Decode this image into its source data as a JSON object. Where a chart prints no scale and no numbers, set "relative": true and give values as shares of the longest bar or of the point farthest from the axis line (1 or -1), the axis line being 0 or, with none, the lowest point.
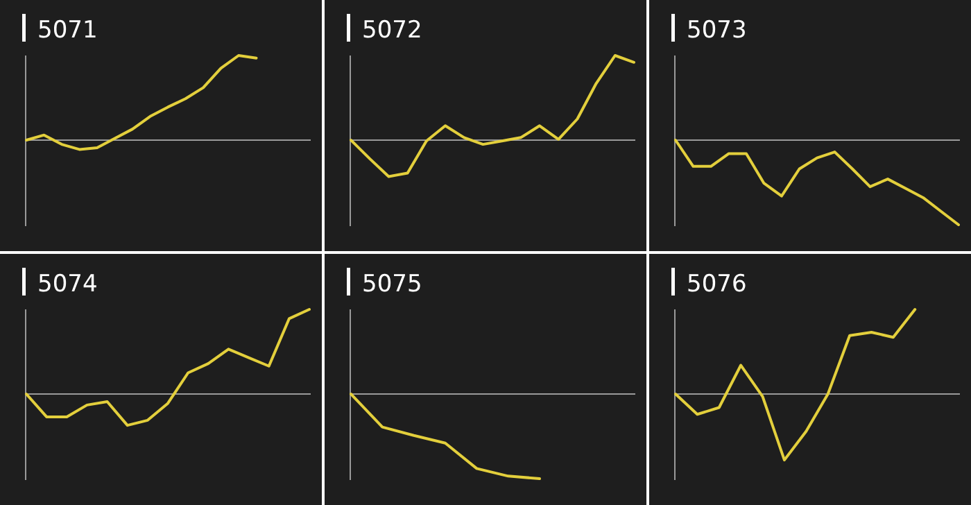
{
  "chart_data": [
    {
      "type": "line",
      "title": "5071",
      "relative": true,
      "categories": [
        null,
        null,
        null,
        null,
        null,
        null,
        null,
        null,
        null,
        null,
        null,
        null,
        null,
        null,
        null,
        null,
        null
      ],
      "series": [
        {
          "color": "#e3cf3c",
          "values": [
            0,
            0.06,
            -0.05,
            -0.11,
            -0.09,
            0.02,
            0.13,
            0.28,
            0.39,
            0.49,
            0.62,
            0.85,
            1,
            0.97,
            null,
            null,
            null
          ]
        }
      ]
    },
    {
      "type": "line",
      "title": "5072",
      "relative": true,
      "categories": [
        null,
        null,
        null,
        null,
        null,
        null,
        null,
        null,
        null,
        null,
        null,
        null,
        null,
        null,
        null,
        null
      ],
      "series": [
        {
          "color": "#e3cf3c",
          "values": [
            0,
            -0.22,
            -0.43,
            -0.39,
            -0.01,
            0.17,
            0.03,
            -0.05,
            -0.01,
            0.03,
            0.17,
            0.01,
            0.25,
            0.67,
            1,
            0.92
          ]
        }
      ]
    },
    {
      "type": "line",
      "title": "5073",
      "relative": true,
      "categories": [
        null,
        null,
        null,
        null,
        null,
        null,
        null,
        null,
        null,
        null,
        null,
        null,
        null,
        null,
        null,
        null,
        null
      ],
      "series": [
        {
          "color": "#e3cf3c",
          "values": [
            0,
            -0.31,
            -0.31,
            -0.16,
            -0.16,
            -0.51,
            -0.66,
            -0.34,
            -0.21,
            -0.14,
            -0.34,
            -0.55,
            -0.46,
            -0.57,
            -0.68,
            -0.84,
            -1
          ]
        }
      ]
    },
    {
      "type": "line",
      "title": "5074",
      "relative": true,
      "categories": [
        null,
        null,
        null,
        null,
        null,
        null,
        null,
        null,
        null,
        null,
        null,
        null,
        null,
        null,
        null
      ],
      "series": [
        {
          "color": "#e3cf3c",
          "values": [
            0,
            -0.27,
            -0.27,
            -0.13,
            -0.09,
            -0.37,
            -0.31,
            -0.11,
            0.25,
            0.36,
            0.53,
            0.43,
            0.33,
            0.89,
            1
          ]
        }
      ]
    },
    {
      "type": "line",
      "title": "5075",
      "relative": true,
      "categories": [
        null,
        null,
        null,
        null,
        null,
        null,
        null,
        null,
        null,
        null
      ],
      "series": [
        {
          "color": "#e3cf3c",
          "values": [
            0,
            -0.39,
            -0.49,
            -0.58,
            -0.88,
            -0.97,
            -1,
            null,
            null,
            null
          ]
        }
      ]
    },
    {
      "type": "line",
      "title": "5076",
      "relative": true,
      "categories": [
        null,
        null,
        null,
        null,
        null,
        null,
        null,
        null,
        null,
        null,
        null,
        null,
        null,
        null
      ],
      "series": [
        {
          "color": "#e3cf3c",
          "values": [
            0,
            -0.24,
            -0.16,
            0.34,
            -0.03,
            -0.78,
            -0.44,
            0,
            0.69,
            0.73,
            0.67,
            1,
            null,
            null
          ]
        }
      ]
    }
  ]
}
